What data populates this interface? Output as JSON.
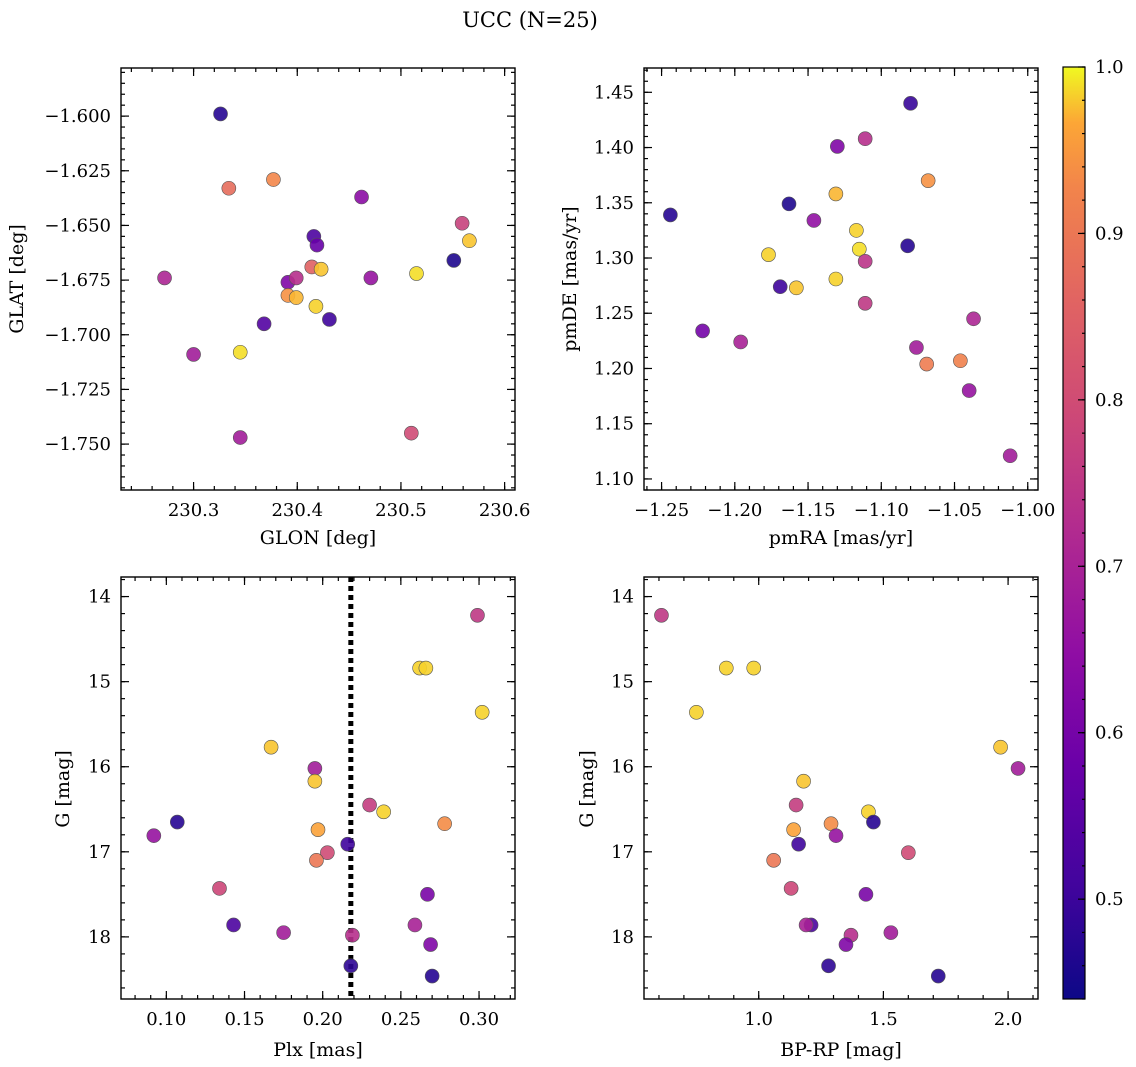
{
  "title": "UCC (N=25)",
  "colorbar": {
    "range": [
      0.44,
      1.0
    ],
    "ticks": [
      0.5,
      0.6,
      0.7,
      0.8,
      0.9,
      1.0
    ],
    "tick_labels": [
      "0.5",
      "0.6",
      "0.7",
      "0.8",
      "0.9",
      "1.0"
    ],
    "colormap": "plasma"
  },
  "chart_data": [
    {
      "type": "scatter",
      "id": "glon-glat",
      "xlabel": "GLON [deg]",
      "ylabel": "GLAT [deg]",
      "xlim": [
        230.23,
        230.61
      ],
      "ylim": [
        -1.771,
        -1.578
      ],
      "y_inverted": false,
      "xticks": [
        230.3,
        230.4,
        230.5,
        230.6
      ],
      "xtick_labels": [
        "230.3",
        "230.4",
        "230.5",
        "230.6"
      ],
      "yticks": [
        -1.75,
        -1.725,
        -1.7,
        -1.675,
        -1.65,
        -1.625,
        -1.6
      ],
      "ytick_labels": [
        "−1.750",
        "−1.725",
        "−1.700",
        "−1.675",
        "−1.650",
        "−1.625",
        "−1.600"
      ],
      "points": [
        {
          "x": 230.326,
          "y": -1.599,
          "c": 0.47
        },
        {
          "x": 230.334,
          "y": -1.633,
          "c": 0.83
        },
        {
          "x": 230.377,
          "y": -1.629,
          "c": 0.88
        },
        {
          "x": 230.462,
          "y": -1.637,
          "c": 0.62
        },
        {
          "x": 230.416,
          "y": -1.655,
          "c": 0.52
        },
        {
          "x": 230.419,
          "y": -1.659,
          "c": 0.56
        },
        {
          "x": 230.559,
          "y": -1.649,
          "c": 0.74
        },
        {
          "x": 230.566,
          "y": -1.657,
          "c": 0.96
        },
        {
          "x": 230.551,
          "y": -1.666,
          "c": 0.46
        },
        {
          "x": 230.272,
          "y": -1.674,
          "c": 0.68
        },
        {
          "x": 230.414,
          "y": -1.669,
          "c": 0.81
        },
        {
          "x": 230.423,
          "y": -1.67,
          "c": 0.96
        },
        {
          "x": 230.515,
          "y": -1.672,
          "c": 0.98
        },
        {
          "x": 230.471,
          "y": -1.674,
          "c": 0.64
        },
        {
          "x": 230.391,
          "y": -1.676,
          "c": 0.6
        },
        {
          "x": 230.399,
          "y": -1.674,
          "c": 0.7
        },
        {
          "x": 230.391,
          "y": -1.682,
          "c": 0.9
        },
        {
          "x": 230.399,
          "y": -1.683,
          "c": 0.95
        },
        {
          "x": 230.418,
          "y": -1.687,
          "c": 0.97
        },
        {
          "x": 230.431,
          "y": -1.693,
          "c": 0.5
        },
        {
          "x": 230.368,
          "y": -1.695,
          "c": 0.53
        },
        {
          "x": 230.3,
          "y": -1.709,
          "c": 0.66
        },
        {
          "x": 230.345,
          "y": -1.708,
          "c": 0.98
        },
        {
          "x": 230.345,
          "y": -1.747,
          "c": 0.66
        },
        {
          "x": 230.51,
          "y": -1.745,
          "c": 0.76
        }
      ]
    },
    {
      "type": "scatter",
      "id": "pmra-pmde",
      "xlabel": "pmRA [mas/yr]",
      "ylabel": "pmDE [mas/yr]",
      "xlim": [
        -1.262,
        -0.993
      ],
      "ylim": [
        1.09,
        1.472
      ],
      "y_inverted": false,
      "xticks": [
        -1.25,
        -1.2,
        -1.15,
        -1.1,
        -1.05,
        -1.0
      ],
      "xtick_labels": [
        "−1.25",
        "−1.20",
        "−1.15",
        "−1.10",
        "−1.05",
        "−1.00"
      ],
      "yticks": [
        1.1,
        1.15,
        1.2,
        1.25,
        1.3,
        1.35,
        1.4,
        1.45
      ],
      "ytick_labels": [
        "1.10",
        "1.15",
        "1.20",
        "1.25",
        "1.30",
        "1.35",
        "1.40",
        "1.45"
      ],
      "points": [
        {
          "x": -1.08,
          "y": 1.44,
          "c": 0.49
        },
        {
          "x": -1.111,
          "y": 1.408,
          "c": 0.7
        },
        {
          "x": -1.13,
          "y": 1.401,
          "c": 0.6
        },
        {
          "x": -1.068,
          "y": 1.37,
          "c": 0.9
        },
        {
          "x": -1.131,
          "y": 1.358,
          "c": 0.95
        },
        {
          "x": -1.163,
          "y": 1.349,
          "c": 0.46
        },
        {
          "x": -1.244,
          "y": 1.339,
          "c": 0.47
        },
        {
          "x": -1.146,
          "y": 1.334,
          "c": 0.63
        },
        {
          "x": -1.117,
          "y": 1.325,
          "c": 0.97
        },
        {
          "x": -1.115,
          "y": 1.308,
          "c": 0.98
        },
        {
          "x": -1.082,
          "y": 1.311,
          "c": 0.47
        },
        {
          "x": -1.177,
          "y": 1.303,
          "c": 0.97
        },
        {
          "x": -1.111,
          "y": 1.297,
          "c": 0.71
        },
        {
          "x": -1.131,
          "y": 1.281,
          "c": 0.97
        },
        {
          "x": -1.169,
          "y": 1.274,
          "c": 0.5
        },
        {
          "x": -1.158,
          "y": 1.273,
          "c": 0.96
        },
        {
          "x": -1.111,
          "y": 1.259,
          "c": 0.72
        },
        {
          "x": -1.037,
          "y": 1.245,
          "c": 0.68
        },
        {
          "x": -1.222,
          "y": 1.234,
          "c": 0.58
        },
        {
          "x": -1.196,
          "y": 1.224,
          "c": 0.67
        },
        {
          "x": -1.076,
          "y": 1.219,
          "c": 0.66
        },
        {
          "x": -1.046,
          "y": 1.207,
          "c": 0.87
        },
        {
          "x": -1.069,
          "y": 1.204,
          "c": 0.86
        },
        {
          "x": -1.04,
          "y": 1.18,
          "c": 0.64
        },
        {
          "x": -1.012,
          "y": 1.121,
          "c": 0.66
        }
      ]
    },
    {
      "type": "scatter",
      "id": "plx-g",
      "xlabel": "Plx [mas]",
      "ylabel": "G [mag]",
      "xlim": [
        0.071,
        0.323
      ],
      "ylim": [
        18.73,
        13.77
      ],
      "y_inverted": true,
      "vline": {
        "x": 0.218,
        "style": "dotted"
      },
      "xticks": [
        0.1,
        0.15,
        0.2,
        0.25,
        0.3
      ],
      "xtick_labels": [
        "0.10",
        "0.15",
        "0.20",
        "0.25",
        "0.30"
      ],
      "yticks": [
        14,
        15,
        16,
        17,
        18
      ],
      "ytick_labels": [
        "14",
        "15",
        "16",
        "17",
        "18"
      ],
      "points": [
        {
          "x": 0.299,
          "y": 14.22,
          "c": 0.72
        },
        {
          "x": 0.262,
          "y": 14.84,
          "c": 0.97
        },
        {
          "x": 0.266,
          "y": 14.84,
          "c": 0.97
        },
        {
          "x": 0.302,
          "y": 15.36,
          "c": 0.97
        },
        {
          "x": 0.167,
          "y": 15.77,
          "c": 0.96
        },
        {
          "x": 0.195,
          "y": 16.02,
          "c": 0.66
        },
        {
          "x": 0.195,
          "y": 16.17,
          "c": 0.96
        },
        {
          "x": 0.23,
          "y": 16.45,
          "c": 0.73
        },
        {
          "x": 0.239,
          "y": 16.53,
          "c": 0.97
        },
        {
          "x": 0.107,
          "y": 16.65,
          "c": 0.47
        },
        {
          "x": 0.278,
          "y": 16.67,
          "c": 0.89
        },
        {
          "x": 0.197,
          "y": 16.74,
          "c": 0.93
        },
        {
          "x": 0.092,
          "y": 16.81,
          "c": 0.64
        },
        {
          "x": 0.216,
          "y": 16.91,
          "c": 0.5
        },
        {
          "x": 0.203,
          "y": 17.01,
          "c": 0.76
        },
        {
          "x": 0.196,
          "y": 17.1,
          "c": 0.85
        },
        {
          "x": 0.134,
          "y": 17.43,
          "c": 0.75
        },
        {
          "x": 0.267,
          "y": 17.5,
          "c": 0.59
        },
        {
          "x": 0.143,
          "y": 17.86,
          "c": 0.52
        },
        {
          "x": 0.259,
          "y": 17.86,
          "c": 0.67
        },
        {
          "x": 0.175,
          "y": 17.95,
          "c": 0.66
        },
        {
          "x": 0.219,
          "y": 17.98,
          "c": 0.7
        },
        {
          "x": 0.269,
          "y": 18.09,
          "c": 0.6
        },
        {
          "x": 0.218,
          "y": 18.34,
          "c": 0.48
        },
        {
          "x": 0.27,
          "y": 18.46,
          "c": 0.47
        }
      ]
    },
    {
      "type": "scatter",
      "id": "bprp-g",
      "xlabel": "BP-RP [mag]",
      "ylabel": "G [mag]",
      "xlim": [
        0.54,
        2.12
      ],
      "ylim": [
        18.73,
        13.77
      ],
      "y_inverted": true,
      "xticks": [
        1.0,
        1.5,
        2.0
      ],
      "xtick_labels": [
        "1.0",
        "1.5",
        "2.0"
      ],
      "yticks": [
        14,
        15,
        16,
        17,
        18
      ],
      "ytick_labels": [
        "14",
        "15",
        "16",
        "17",
        "18"
      ],
      "points": [
        {
          "x": 0.61,
          "y": 14.22,
          "c": 0.72
        },
        {
          "x": 0.87,
          "y": 14.84,
          "c": 0.97
        },
        {
          "x": 0.98,
          "y": 14.84,
          "c": 0.97
        },
        {
          "x": 0.75,
          "y": 15.36,
          "c": 0.97
        },
        {
          "x": 1.97,
          "y": 15.77,
          "c": 0.96
        },
        {
          "x": 2.04,
          "y": 16.02,
          "c": 0.66
        },
        {
          "x": 1.18,
          "y": 16.17,
          "c": 0.96
        },
        {
          "x": 1.15,
          "y": 16.45,
          "c": 0.73
        },
        {
          "x": 1.44,
          "y": 16.53,
          "c": 0.97
        },
        {
          "x": 1.46,
          "y": 16.65,
          "c": 0.47
        },
        {
          "x": 1.29,
          "y": 16.67,
          "c": 0.89
        },
        {
          "x": 1.14,
          "y": 16.74,
          "c": 0.93
        },
        {
          "x": 1.31,
          "y": 16.81,
          "c": 0.64
        },
        {
          "x": 1.16,
          "y": 16.91,
          "c": 0.5
        },
        {
          "x": 1.6,
          "y": 17.01,
          "c": 0.76
        },
        {
          "x": 1.06,
          "y": 17.1,
          "c": 0.85
        },
        {
          "x": 1.13,
          "y": 17.43,
          "c": 0.75
        },
        {
          "x": 1.43,
          "y": 17.5,
          "c": 0.59
        },
        {
          "x": 1.21,
          "y": 17.86,
          "c": 0.52
        },
        {
          "x": 1.19,
          "y": 17.86,
          "c": 0.67
        },
        {
          "x": 1.53,
          "y": 17.95,
          "c": 0.66
        },
        {
          "x": 1.37,
          "y": 17.98,
          "c": 0.7
        },
        {
          "x": 1.35,
          "y": 18.09,
          "c": 0.6
        },
        {
          "x": 1.28,
          "y": 18.34,
          "c": 0.48
        },
        {
          "x": 1.72,
          "y": 18.46,
          "c": 0.47
        }
      ]
    }
  ]
}
